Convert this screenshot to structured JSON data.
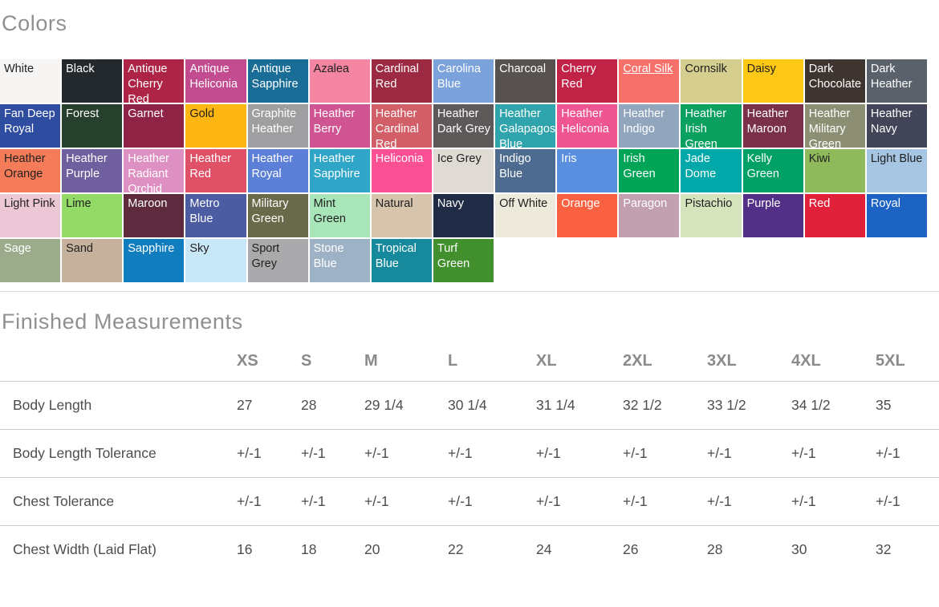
{
  "colors_section": {
    "title": "Colors",
    "swatches": [
      {
        "name": "White",
        "bg": "#f7f5f3",
        "text": "#1f1f1f"
      },
      {
        "name": "Black",
        "bg": "#23282c",
        "text": "#ffffff"
      },
      {
        "name": "Antique Cherry Red",
        "bg": "#ad2446",
        "text": "#ffffff"
      },
      {
        "name": "Antique Heliconia",
        "bg": "#c34b90",
        "text": "#ffffff"
      },
      {
        "name": "Antique Sapphire",
        "bg": "#1a6d96",
        "text": "#ffffff"
      },
      {
        "name": "Azalea",
        "bg": "#f586a3",
        "text": "#1f1f1f"
      },
      {
        "name": "Cardinal Red",
        "bg": "#9c2a42",
        "text": "#ffffff"
      },
      {
        "name": "Carolina Blue",
        "bg": "#7ba2da",
        "text": "#ffffff"
      },
      {
        "name": "Charcoal",
        "bg": "#575150",
        "text": "#ffffff"
      },
      {
        "name": "Cherry Red",
        "bg": "#c12347",
        "text": "#ffffff"
      },
      {
        "name": "Coral Silk",
        "bg": "#f7716a",
        "text": "#ffffff",
        "underline": true
      },
      {
        "name": "Cornsilk",
        "bg": "#d5ce8e",
        "text": "#1f1f1f"
      },
      {
        "name": "Daisy",
        "bg": "#fdc815",
        "text": "#1f1f1f"
      },
      {
        "name": "Dark Chocolate",
        "bg": "#3e3531",
        "text": "#ffffff"
      },
      {
        "name": "Dark Heather",
        "bg": "#5b616b",
        "text": "#ffffff"
      },
      {
        "name": "Fan Deep Royal",
        "bg": "#2e4da0",
        "text": "#ffffff"
      },
      {
        "name": "Forest",
        "bg": "#273f2d",
        "text": "#ffffff"
      },
      {
        "name": "Garnet",
        "bg": "#8e2345",
        "text": "#ffffff"
      },
      {
        "name": "Gold",
        "bg": "#feb712",
        "text": "#1f1f1f"
      },
      {
        "name": "Graphite Heather",
        "bg": "#9f9ea0",
        "text": "#ffffff"
      },
      {
        "name": "Heather Berry",
        "bg": "#d05492",
        "text": "#ffffff"
      },
      {
        "name": "Heather Cardinal Red",
        "bg": "#d25f68",
        "text": "#ffffff"
      },
      {
        "name": "Heather Dark Grey",
        "bg": "#5d5958",
        "text": "#ffffff"
      },
      {
        "name": "Heather Galapagos Blue",
        "bg": "#30a4ac",
        "text": "#ffffff"
      },
      {
        "name": "Heather Heliconia",
        "bg": "#ef5590",
        "text": "#ffffff"
      },
      {
        "name": "Heather Indigo",
        "bg": "#91a6bd",
        "text": "#ffffff"
      },
      {
        "name": "Heather Irish Green",
        "bg": "#09a060",
        "text": "#ffffff"
      },
      {
        "name": "Heather Maroon",
        "bg": "#7b3049",
        "text": "#ffffff"
      },
      {
        "name": "Heather Military Green",
        "bg": "#8d8f74",
        "text": "#ffffff"
      },
      {
        "name": "Heather Navy",
        "bg": "#414557",
        "text": "#ffffff"
      },
      {
        "name": "Heather Orange",
        "bg": "#f57c58",
        "text": "#1f1f1f"
      },
      {
        "name": "Heather Purple",
        "bg": "#6f5f9e",
        "text": "#ffffff"
      },
      {
        "name": "Heather Radiant Orchid",
        "bg": "#dd90c1",
        "text": "#ffffff"
      },
      {
        "name": "Heather Red",
        "bg": "#e05168",
        "text": "#ffffff"
      },
      {
        "name": "Heather Royal",
        "bg": "#5c80d7",
        "text": "#ffffff"
      },
      {
        "name": "Heather Sapphire",
        "bg": "#2fa5c7",
        "text": "#ffffff"
      },
      {
        "name": "Heliconia",
        "bg": "#fb5093",
        "text": "#ffffff"
      },
      {
        "name": "Ice Grey",
        "bg": "#dfdbd4",
        "text": "#1f1f1f"
      },
      {
        "name": "Indigo Blue",
        "bg": "#4d6b8e",
        "text": "#ffffff"
      },
      {
        "name": "Iris",
        "bg": "#5a8ede",
        "text": "#ffffff"
      },
      {
        "name": "Irish Green",
        "bg": "#00a457",
        "text": "#ffffff"
      },
      {
        "name": "Jade Dome",
        "bg": "#00a8aa",
        "text": "#ffffff"
      },
      {
        "name": "Kelly Green",
        "bg": "#00a166",
        "text": "#ffffff"
      },
      {
        "name": "Kiwi",
        "bg": "#8fba5c",
        "text": "#1f1f1f"
      },
      {
        "name": "Light Blue",
        "bg": "#a5c5e3",
        "text": "#1f1f1f"
      },
      {
        "name": "Light Pink",
        "bg": "#ecc7d6",
        "text": "#1f1f1f"
      },
      {
        "name": "Lime",
        "bg": "#93da66",
        "text": "#1f1f1f"
      },
      {
        "name": "Maroon",
        "bg": "#5d2b3d",
        "text": "#ffffff"
      },
      {
        "name": "Metro Blue",
        "bg": "#4c5ca3",
        "text": "#ffffff"
      },
      {
        "name": "Military Green",
        "bg": "#686a4a",
        "text": "#ffffff"
      },
      {
        "name": "Mint Green",
        "bg": "#a8e5b9",
        "text": "#1f1f1f"
      },
      {
        "name": "Natural",
        "bg": "#d7c4ad",
        "text": "#1f1f1f"
      },
      {
        "name": "Navy",
        "bg": "#202c46",
        "text": "#ffffff"
      },
      {
        "name": "Off White",
        "bg": "#ede9db",
        "text": "#1f1f1f"
      },
      {
        "name": "Orange",
        "bg": "#fa6140",
        "text": "#ffffff"
      },
      {
        "name": "Paragon",
        "bg": "#c2a0b0",
        "text": "#ffffff"
      },
      {
        "name": "Pistachio",
        "bg": "#d6e4bd",
        "text": "#1f1f1f"
      },
      {
        "name": "Purple",
        "bg": "#533087",
        "text": "#ffffff"
      },
      {
        "name": "Red",
        "bg": "#e02139",
        "text": "#ffffff"
      },
      {
        "name": "Royal",
        "bg": "#1d63c4",
        "text": "#ffffff"
      },
      {
        "name": "Sage",
        "bg": "#9cab8c",
        "text": "#ffffff"
      },
      {
        "name": "Sand",
        "bg": "#c6b29c",
        "text": "#1f1f1f"
      },
      {
        "name": "Sapphire",
        "bg": "#0f7dbe",
        "text": "#ffffff"
      },
      {
        "name": "Sky",
        "bg": "#c8e7f7",
        "text": "#1f1f1f"
      },
      {
        "name": "Sport Grey",
        "bg": "#aaaaac",
        "text": "#1f1f1f"
      },
      {
        "name": "Stone Blue",
        "bg": "#9db2c5",
        "text": "#ffffff"
      },
      {
        "name": "Tropical Blue",
        "bg": "#17899c",
        "text": "#ffffff"
      },
      {
        "name": "Turf Green",
        "bg": "#428f2e",
        "text": "#ffffff"
      }
    ]
  },
  "measurements": {
    "title": "Finished Measurements",
    "sizes": [
      "XS",
      "S",
      "M",
      "L",
      "XL",
      "2XL",
      "3XL",
      "4XL",
      "5XL"
    ],
    "rows": [
      {
        "label": "Body Length",
        "values": [
          "27",
          "28",
          "29 1/4",
          "30 1/4",
          "31 1/4",
          "32 1/2",
          "33 1/2",
          "34 1/2",
          "35"
        ]
      },
      {
        "label": "Body Length Tolerance",
        "values": [
          "+/-1",
          "+/-1",
          "+/-1",
          "+/-1",
          "+/-1",
          "+/-1",
          "+/-1",
          "+/-1",
          "+/-1"
        ]
      },
      {
        "label": "Chest Tolerance",
        "values": [
          "+/-1",
          "+/-1",
          "+/-1",
          "+/-1",
          "+/-1",
          "+/-1",
          "+/-1",
          "+/-1",
          "+/-1"
        ]
      },
      {
        "label": "Chest Width (Laid Flat)",
        "values": [
          "16",
          "18",
          "20",
          "22",
          "24",
          "26",
          "28",
          "30",
          "32"
        ]
      }
    ]
  }
}
